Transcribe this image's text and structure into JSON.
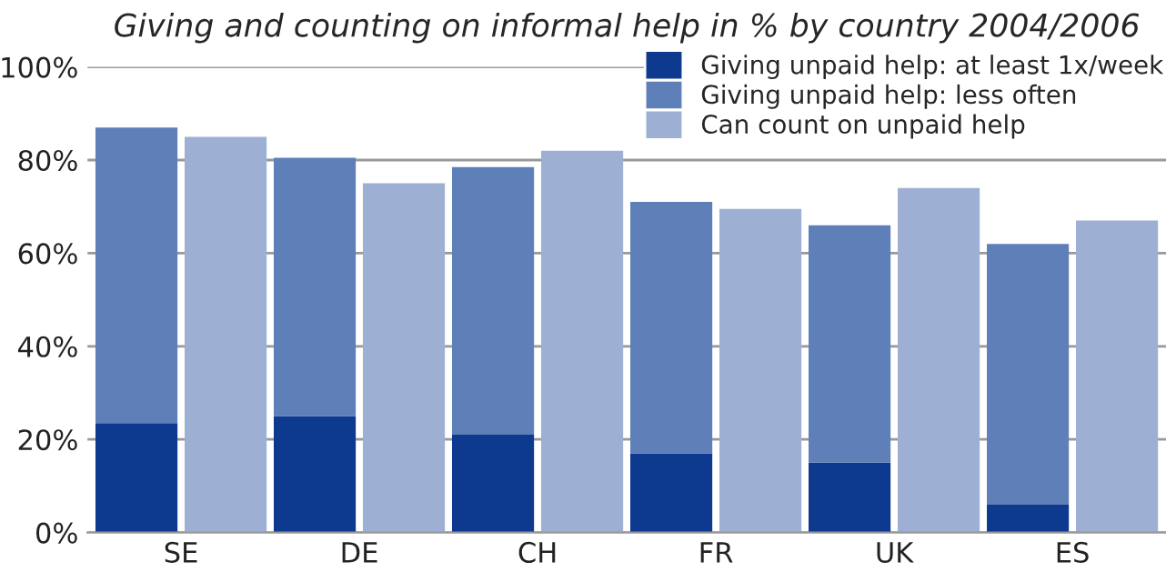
{
  "chart_data": {
    "type": "bar",
    "title": "Giving and counting on informal help in % by country 2004/2006",
    "categories": [
      "SE",
      null,
      "DE",
      null,
      "CH",
      null,
      "FR",
      null,
      "UK",
      null,
      "ES",
      null
    ],
    "stacked": true,
    "series": [
      {
        "name": "Giving unpaid help: at least 1x/week",
        "color": "#0d3a8e",
        "values": [
          23.5,
          null,
          25,
          null,
          21,
          null,
          17,
          null,
          15,
          null,
          6,
          null
        ]
      },
      {
        "name": "Giving unpaid help: less often",
        "color": "#5f7fb8",
        "values": [
          63.5,
          null,
          55.5,
          null,
          57.5,
          null,
          54,
          null,
          51,
          null,
          56,
          null
        ]
      },
      {
        "name": "Can count on unpaid help",
        "color": "#9db0d4",
        "values": [
          null,
          85,
          null,
          75,
          null,
          82,
          null,
          69.5,
          null,
          74,
          null,
          67
        ]
      }
    ],
    "ylim": [
      0,
      100
    ],
    "yticks": [
      {
        "value": 0,
        "label": "0%"
      },
      {
        "value": 20,
        "label": "20%"
      },
      {
        "value": 40,
        "label": "40%"
      },
      {
        "value": 60,
        "label": "60%"
      },
      {
        "value": 80,
        "label": "80%"
      },
      {
        "value": 100,
        "label": "100%"
      }
    ],
    "grid": "y",
    "legend": "top right"
  }
}
